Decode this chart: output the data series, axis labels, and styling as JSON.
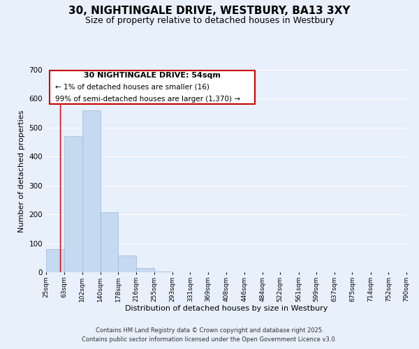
{
  "title": "30, NIGHTINGALE DRIVE, WESTBURY, BA13 3XY",
  "subtitle": "Size of property relative to detached houses in Westbury",
  "xlabel": "Distribution of detached houses by size in Westbury",
  "ylabel": "Number of detached properties",
  "bar_edges": [
    25,
    63,
    102,
    140,
    178,
    216,
    255,
    293,
    331,
    369,
    408,
    446,
    484,
    522,
    561,
    599,
    637,
    675,
    714,
    752,
    790
  ],
  "bar_heights": [
    80,
    470,
    560,
    207,
    57,
    14,
    2,
    0,
    0,
    0,
    0,
    0,
    0,
    0,
    0,
    0,
    0,
    0,
    0,
    0
  ],
  "bar_color": "#c5d9f1",
  "bar_edge_color": "#a0b8d8",
  "background_color": "#e8f0fc",
  "plot_bg_color": "#e8f0fc",
  "grid_color": "#ffffff",
  "vline_x": 54,
  "vline_color": "#cc0000",
  "annotation_box_color": "#ffffff",
  "annotation_border_color": "#cc0000",
  "annotation_title": "30 NIGHTINGALE DRIVE: 54sqm",
  "annotation_line1": "← 1% of detached houses are smaller (16)",
  "annotation_line2": "99% of semi-detached houses are larger (1,370) →",
  "ylim": [
    0,
    700
  ],
  "xlim": [
    25,
    790
  ],
  "tick_labels": [
    "25sqm",
    "63sqm",
    "102sqm",
    "140sqm",
    "178sqm",
    "216sqm",
    "255sqm",
    "293sqm",
    "331sqm",
    "369sqm",
    "408sqm",
    "446sqm",
    "484sqm",
    "522sqm",
    "561sqm",
    "599sqm",
    "637sqm",
    "675sqm",
    "714sqm",
    "752sqm",
    "790sqm"
  ],
  "footer1": "Contains HM Land Registry data © Crown copyright and database right 2025.",
  "footer2": "Contains public sector information licensed under the Open Government Licence v3.0.",
  "title_fontsize": 11,
  "subtitle_fontsize": 9,
  "axis_label_fontsize": 8,
  "tick_fontsize": 6.5,
  "annotation_title_fontsize": 8,
  "annotation_body_fontsize": 7.5,
  "footer_fontsize": 6
}
